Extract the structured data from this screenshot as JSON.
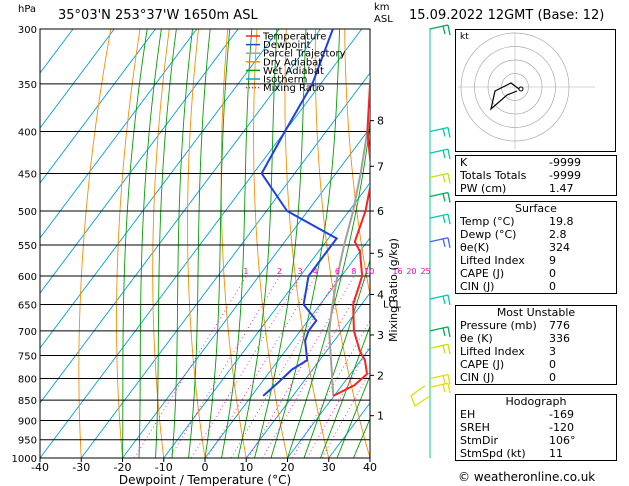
{
  "header": {
    "location": "35°03'N  253°37'W  1650m  ASL",
    "datetime": "15.09.2022  12GMT  (Base: 12)",
    "hpa": "hPa",
    "km": "km",
    "asl": "ASL"
  },
  "chart_data": {
    "type": "skew-t",
    "xlabel": "Dewpoint / Temperature (°C)",
    "ylabel_right": "Mixing Ratio (g/kg)",
    "x_ticks": [
      -40,
      -30,
      -20,
      -10,
      0,
      10,
      20,
      30,
      40
    ],
    "pressure_levels": [
      300,
      350,
      400,
      450,
      500,
      550,
      600,
      650,
      700,
      750,
      800,
      850,
      900,
      950,
      1000
    ],
    "km_labels": [
      {
        "km": "1",
        "p": 888
      },
      {
        "km": "2",
        "p": 793
      },
      {
        "km": "3",
        "p": 708
      },
      {
        "km": "4",
        "p": 632
      },
      {
        "km": "5",
        "p": 563
      },
      {
        "km": "6",
        "p": 500
      },
      {
        "km": "7",
        "p": 441
      },
      {
        "km": "8",
        "p": 388
      }
    ],
    "lcl": {
      "label": "LCL",
      "p": 648
    },
    "mixing_ratio_labels": [
      "1",
      "2",
      "3",
      "4",
      "6",
      "8",
      "10",
      "16",
      "20",
      "25"
    ],
    "legend": [
      "Temperature",
      "Dewpoint",
      "Parcel Trajectory",
      "Dry Adiabat",
      "Wet Adiabat",
      "Isotherm",
      "Mixing Ratio"
    ],
    "colors": {
      "temperature": "#ff2020",
      "dewpoint": "#2040e0",
      "parcel": "#a0a0a0",
      "dry_adiabat": "#ff8c00",
      "wet_adiabat": "#00a000",
      "isotherm": "#00a0e0",
      "mixing_ratio": "#ff00c0",
      "wind": "#00cc88"
    },
    "temperature": [
      [
        840,
        19.8
      ],
      [
        815,
        23
      ],
      [
        790,
        24
      ],
      [
        760,
        21
      ],
      [
        740,
        18
      ],
      [
        700,
        13
      ],
      [
        650,
        8
      ],
      [
        600,
        5
      ],
      [
        560,
        0
      ],
      [
        545,
        -3
      ],
      [
        500,
        -6
      ],
      [
        460,
        -10
      ],
      [
        440,
        -13
      ],
      [
        400,
        -20
      ],
      [
        350,
        -28
      ],
      [
        300,
        -37
      ]
    ],
    "dewpoint": [
      [
        840,
        2.8
      ],
      [
        810,
        4
      ],
      [
        780,
        5
      ],
      [
        760,
        7
      ],
      [
        720,
        3
      ],
      [
        700,
        2
      ],
      [
        680,
        2
      ],
      [
        650,
        -4
      ],
      [
        600,
        -8
      ],
      [
        560,
        -8
      ],
      [
        540,
        -8
      ],
      [
        500,
        -25
      ],
      [
        450,
        -38
      ],
      [
        400,
        -40
      ],
      [
        350,
        -42
      ],
      [
        300,
        -47
      ]
    ],
    "parcel": [
      [
        840,
        19.8
      ],
      [
        700,
        7
      ],
      [
        650,
        3
      ],
      [
        600,
        -1
      ],
      [
        550,
        -5
      ],
      [
        500,
        -9
      ],
      [
        450,
        -14
      ],
      [
        400,
        -20
      ],
      [
        350,
        -27
      ],
      [
        300,
        -35
      ]
    ]
  },
  "hodograph": {
    "label": "kt"
  },
  "indices": [
    {
      "label": "K",
      "value": "-9999"
    },
    {
      "label": "Totals Totals",
      "value": "-9999"
    },
    {
      "label": "PW (cm)",
      "value": "1.47"
    }
  ],
  "surface": {
    "title": "Surface",
    "rows": [
      {
        "label": "Temp (°C)",
        "value": "19.8"
      },
      {
        "label": "Dewp (°C)",
        "value": "2.8"
      },
      {
        "label": "θe(K)",
        "value": "324"
      },
      {
        "label": "Lifted Index",
        "value": "9"
      },
      {
        "label": "CAPE (J)",
        "value": "0"
      },
      {
        "label": "CIN (J)",
        "value": "0"
      }
    ]
  },
  "most_unstable": {
    "title": "Most Unstable",
    "rows": [
      {
        "label": "Pressure (mb)",
        "value": "776"
      },
      {
        "label": "θe (K)",
        "value": "336"
      },
      {
        "label": "Lifted Index",
        "value": "3"
      },
      {
        "label": "CAPE (J)",
        "value": "0"
      },
      {
        "label": "CIN (J)",
        "value": "0"
      }
    ]
  },
  "hodograph_table": {
    "title": "Hodograph",
    "rows": [
      {
        "label": "EH",
        "value": "-169"
      },
      {
        "label": "SREH",
        "value": "-120"
      },
      {
        "label": "StmDir",
        "value": "106°"
      },
      {
        "label": "StmSpd (kt)",
        "value": "11"
      }
    ]
  },
  "credit": "© weatheronline.co.uk"
}
